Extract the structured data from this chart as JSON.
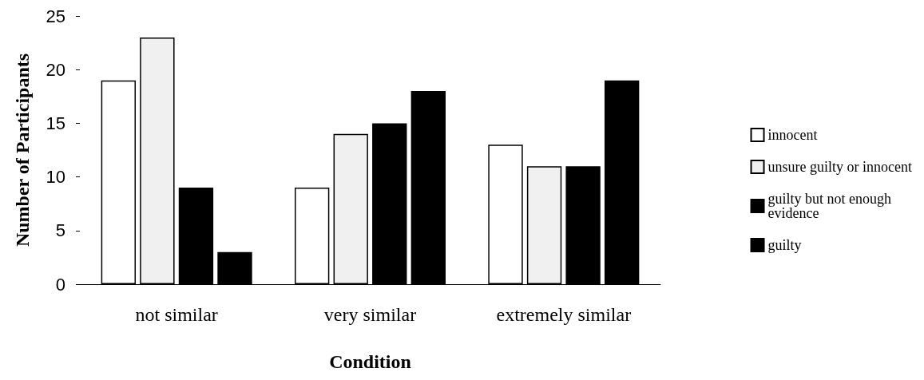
{
  "chart_data": {
    "type": "bar",
    "xlabel": "Condition",
    "ylabel": "Number of Participants",
    "categories": [
      "not similar",
      "very similar",
      "extremely similar"
    ],
    "series": [
      {
        "name": "innocent",
        "color": "#ffffff",
        "values": [
          19,
          9,
          13
        ]
      },
      {
        "name": "unsure guilty or innocent",
        "color": "#f0f0f0",
        "values": [
          23,
          14,
          11
        ]
      },
      {
        "name": "guilty but not enough evidence",
        "color": "#000000",
        "values": [
          9,
          15,
          11
        ]
      },
      {
        "name": "guilty",
        "color": "#000000",
        "values": [
          3,
          18,
          19
        ]
      }
    ],
    "ylim": [
      0,
      25
    ],
    "yticks": [
      0,
      5,
      10,
      15,
      20,
      25
    ],
    "grid": false,
    "legend": "right"
  }
}
